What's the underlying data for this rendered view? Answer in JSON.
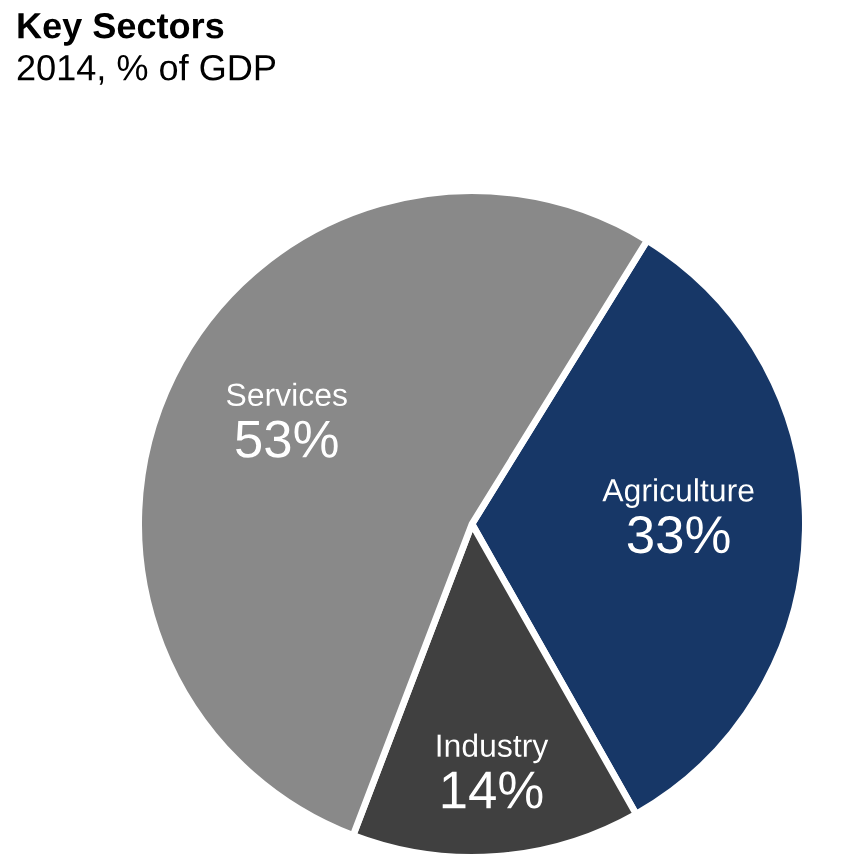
{
  "chart_data": {
    "type": "pie",
    "title": "Key Sectors",
    "subtitle": "2014, % of GDP",
    "categories": [
      "Agriculture",
      "Industry",
      "Services"
    ],
    "values": [
      33,
      14,
      53
    ],
    "colors": [
      "#173767",
      "#404040",
      "#898989"
    ],
    "value_labels": [
      "33%",
      "14%",
      "53%"
    ],
    "legend": false
  }
}
